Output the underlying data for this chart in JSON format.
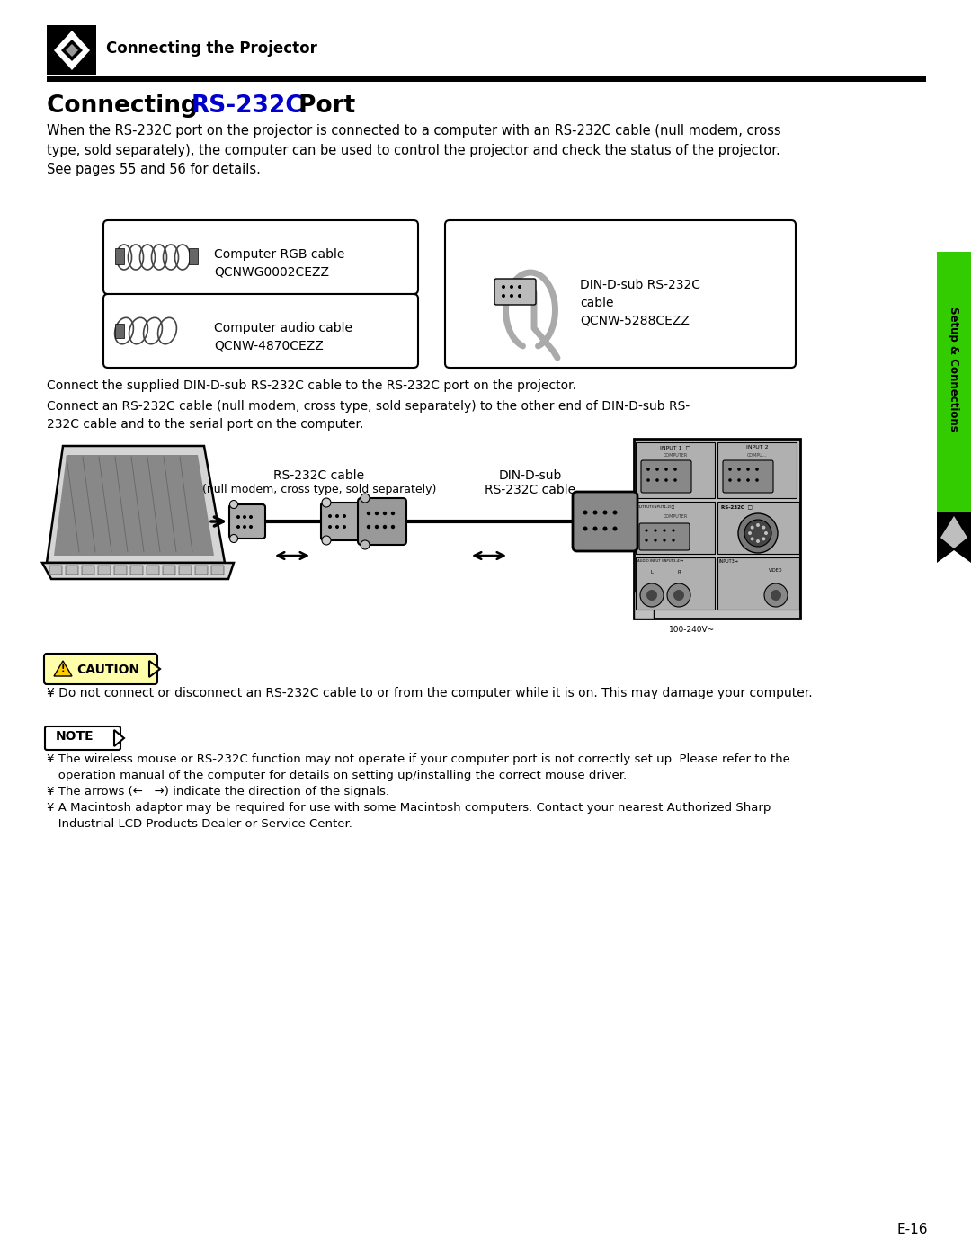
{
  "bg_color": "#ffffff",
  "header_text": "Connecting the Projector",
  "title_text1": "Connecting ",
  "title_blue": "RS-232C",
  "title_text2": " Port",
  "body_text": "When the RS-232C port on the projector is connected to a computer with an RS-232C cable (null modem, cross\ntype, sold separately), the computer can be used to control the projector and check the status of the projector.\nSee pages 55 and 56 for details.",
  "box1_label1": "Computer RGB cable",
  "box1_label2": "QCNWG0002CEZZ",
  "box2_label1": "Computer audio cable",
  "box2_label2": "QCNW-4870CEZZ",
  "box3_label1": "DIN-D-sub RS-232C",
  "box3_label2": "cable",
  "box3_label3": "QCNW-5288CEZZ",
  "connect_text1": "Connect the supplied DIN-D-sub RS-232C cable to the RS-232C port on the projector.",
  "connect_text2": "Connect an RS-232C cable (null modem, cross type, sold separately) to the other end of DIN-D-sub RS-\n232C cable and to the serial port on the computer.",
  "rs232c_label1": "RS-232C cable",
  "rs232c_label2": "(null modem, cross type, sold separately)",
  "din_label1": "DIN-D-sub",
  "din_label2": "RS-232C cable",
  "caution_text": "¥ Do not connect or disconnect an RS-232C cable to or from the computer while it is on. This may damage your computer.",
  "note1": "¥ The wireless mouse or RS-232C function may not operate if your computer port is not correctly set up. Please refer to the\n   operation manual of the computer for details on setting up/installing the correct mouse driver.",
  "note2": "¥ The arrows (←   →) indicate the direction of the signals.",
  "note3": "¥ A Macintosh adaptor may be required for use with some Macintosh computers. Contact your nearest Authorized Sharp\n   Industrial LCD Products Dealer or Service Center.",
  "side_tab_color": "#33cc00",
  "side_tab_text": "Setup & Connections",
  "page_number": "E-16",
  "blue_color": "#0000cc"
}
